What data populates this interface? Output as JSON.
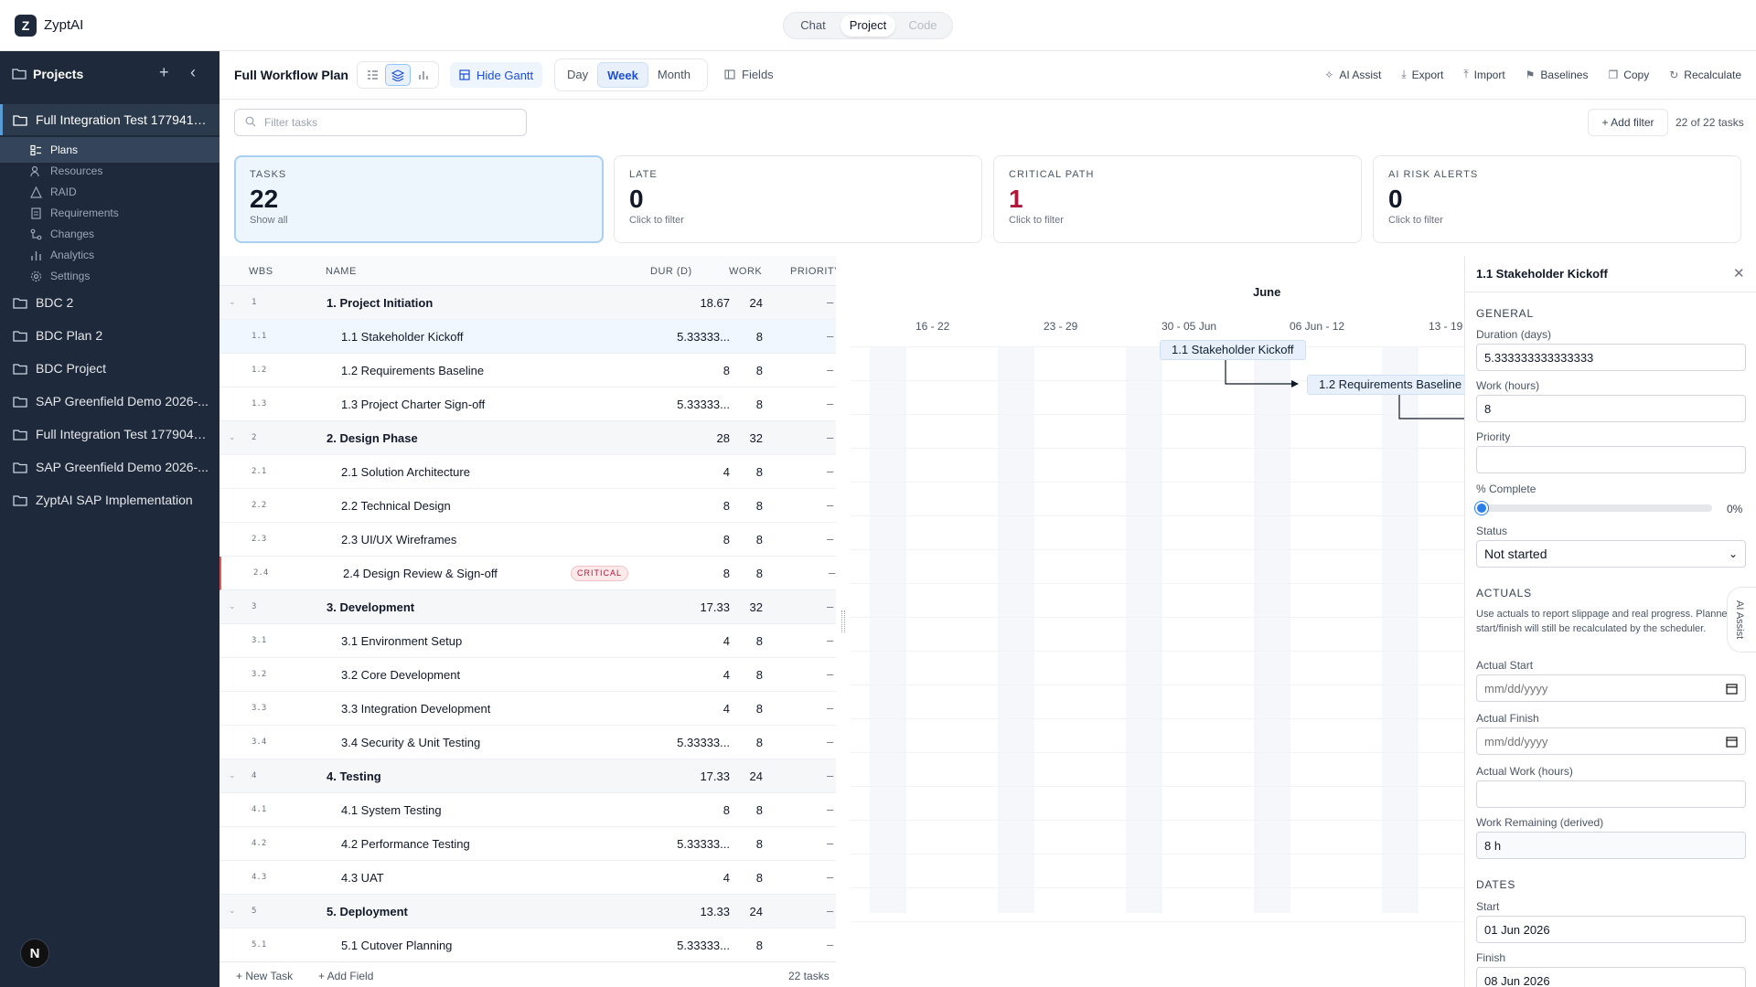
{
  "app": {
    "logo": "Z",
    "brand": "ZyptAI"
  },
  "modes": [
    {
      "label": "Chat",
      "state": "normal"
    },
    {
      "label": "Project",
      "state": "active"
    },
    {
      "label": "Code",
      "state": "disabled"
    }
  ],
  "sidebar": {
    "title": "Projects",
    "active_project": "Full Integration Test 1779415...",
    "sub_items": [
      {
        "label": "Plans",
        "icon": "plans-icon"
      },
      {
        "label": "Resources",
        "icon": "resources-icon"
      },
      {
        "label": "RAID",
        "icon": "raid-icon"
      },
      {
        "label": "Requirements",
        "icon": "requirements-icon"
      },
      {
        "label": "Changes",
        "icon": "changes-icon"
      },
      {
        "label": "Analytics",
        "icon": "analytics-icon"
      },
      {
        "label": "Settings",
        "icon": "gear-icon"
      }
    ],
    "projects": [
      "BDC 2",
      "BDC Plan 2",
      "BDC Project",
      "SAP Greenfield Demo 2026-...",
      "Full Integration Test 1779046...",
      "SAP Greenfield Demo 2026-...",
      "ZyptAI SAP Implementation"
    ],
    "user_initial": "N"
  },
  "toolbar": {
    "plan_title": "Full Workflow Plan",
    "hide_gantt": "Hide Gantt",
    "zoom": [
      "Day",
      "Week",
      "Month"
    ],
    "zoom_selected": "Week",
    "fields": "Fields",
    "actions": [
      "AI Assist",
      "Export",
      "Import",
      "Baselines",
      "Copy",
      "Recalculate"
    ]
  },
  "filter": {
    "placeholder": "Filter tasks",
    "add_filter": "+ Add filter",
    "count": "22 of 22 tasks"
  },
  "stats": [
    {
      "title": "TASKS",
      "value": "22",
      "sub": "Show all",
      "active": true
    },
    {
      "title": "LATE",
      "value": "0",
      "sub": "Click to filter"
    },
    {
      "title": "CRITICAL PATH",
      "value": "1",
      "sub": "Click to filter",
      "red": true
    },
    {
      "title": "AI RISK ALERTS",
      "value": "0",
      "sub": "Click to filter"
    }
  ],
  "table": {
    "headers": [
      "WBS",
      "NAME",
      "DUR (D)",
      "WORK",
      "PRIORITY"
    ],
    "rows": [
      {
        "wbs": "1",
        "name": "1. Project Initiation",
        "dur": "18.67",
        "work": "24",
        "pri": "–",
        "group": true
      },
      {
        "wbs": "1.1",
        "name": "1.1 Stakeholder Kickoff",
        "dur": "5.33333...",
        "work": "8",
        "pri": "–",
        "selected": true
      },
      {
        "wbs": "1.2",
        "name": "1.2 Requirements Baseline",
        "dur": "8",
        "work": "8",
        "pri": "–"
      },
      {
        "wbs": "1.3",
        "name": "1.3 Project Charter Sign-off",
        "dur": "5.33333...",
        "work": "8",
        "pri": "–"
      },
      {
        "wbs": "2",
        "name": "2. Design Phase",
        "dur": "28",
        "work": "32",
        "pri": "–",
        "group": true
      },
      {
        "wbs": "2.1",
        "name": "2.1 Solution Architecture",
        "dur": "4",
        "work": "8",
        "pri": "–"
      },
      {
        "wbs": "2.2",
        "name": "2.2 Technical Design",
        "dur": "8",
        "work": "8",
        "pri": "–"
      },
      {
        "wbs": "2.3",
        "name": "2.3 UI/UX Wireframes",
        "dur": "8",
        "work": "8",
        "pri": "–"
      },
      {
        "wbs": "2.4",
        "name": "2.4 Design Review & Sign-off",
        "dur": "8",
        "work": "8",
        "pri": "–",
        "critical": true,
        "badge": "CRITICAL"
      },
      {
        "wbs": "3",
        "name": "3. Development",
        "dur": "17.33",
        "work": "32",
        "pri": "–",
        "group": true
      },
      {
        "wbs": "3.1",
        "name": "3.1 Environment Setup",
        "dur": "4",
        "work": "8",
        "pri": "–"
      },
      {
        "wbs": "3.2",
        "name": "3.2 Core Development",
        "dur": "4",
        "work": "8",
        "pri": "–"
      },
      {
        "wbs": "3.3",
        "name": "3.3 Integration Development",
        "dur": "4",
        "work": "8",
        "pri": "–"
      },
      {
        "wbs": "3.4",
        "name": "3.4 Security & Unit Testing",
        "dur": "5.33333...",
        "work": "8",
        "pri": "–"
      },
      {
        "wbs": "4",
        "name": "4. Testing",
        "dur": "17.33",
        "work": "24",
        "pri": "–",
        "group": true
      },
      {
        "wbs": "4.1",
        "name": "4.1 System Testing",
        "dur": "8",
        "work": "8",
        "pri": "–"
      },
      {
        "wbs": "4.2",
        "name": "4.2 Performance Testing",
        "dur": "5.33333...",
        "work": "8",
        "pri": "–"
      },
      {
        "wbs": "4.3",
        "name": "4.3 UAT",
        "dur": "4",
        "work": "8",
        "pri": "–"
      },
      {
        "wbs": "5",
        "name": "5. Deployment",
        "dur": "13.33",
        "work": "24",
        "pri": "–",
        "group": true
      },
      {
        "wbs": "5.1",
        "name": "5.1 Cutover Planning",
        "dur": "5.33333...",
        "work": "8",
        "pri": "–"
      }
    ],
    "footer": {
      "new_task": "+ New Task",
      "add_field": "+ Add Field",
      "count": "22 tasks"
    }
  },
  "gantt": {
    "month": "June",
    "weeks": [
      "16 - 22",
      "23 - 29",
      "30 - 05 Jun",
      "06 Jun - 12",
      "13 - 19"
    ],
    "bars": [
      "1.1 Stakeholder Kickoff",
      "1.2 Requirements Baseline"
    ]
  },
  "detail": {
    "title": "1.1 Stakeholder Kickoff",
    "general": "GENERAL",
    "duration_label": "Duration (days)",
    "duration_value": "5.333333333333333",
    "work_label": "Work (hours)",
    "work_value": "8",
    "priority_label": "Priority",
    "priority_value": "",
    "complete_label": "% Complete",
    "complete_value": "0%",
    "complete_fraction": 0,
    "status_label": "Status",
    "status_value": "Not started",
    "actuals": "ACTUALS",
    "actuals_note": "Use actuals to report slippage and real progress. Planned start/finish will still be recalculated by the scheduler.",
    "actual_start_label": "Actual Start",
    "actual_start_placeholder": "mm/dd/yyyy",
    "actual_finish_label": "Actual Finish",
    "actual_finish_placeholder": "mm/dd/yyyy",
    "actual_work_label": "Actual Work (hours)",
    "actual_work_value": "",
    "remaining_label": "Work Remaining (derived)",
    "remaining_value": "8 h",
    "dates": "DATES",
    "start_label": "Start",
    "start_value": "01 Jun 2026",
    "finish_label": "Finish",
    "finish_value": "08 Jun 2026",
    "ai_tab": "AI Assist"
  },
  "colors": {
    "sidebar_bg": "#1e2a3b",
    "accent": "#2b7de9",
    "critical": "#b0163a"
  }
}
